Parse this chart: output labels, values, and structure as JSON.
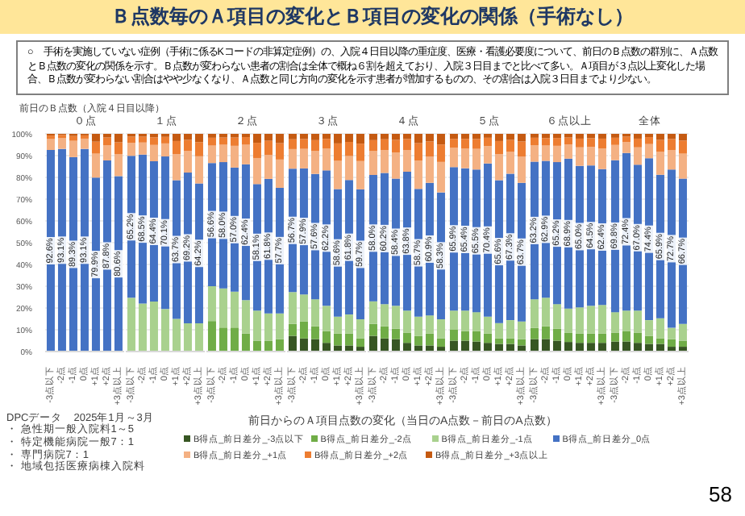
{
  "chart_data": [
    {
      "type": "bar",
      "title": "０点",
      "categories": [
        "-3点以下",
        "-2点",
        "-1点",
        "0点",
        "+1点",
        "+2点",
        "+3点以上"
      ],
      "stacked": true,
      "ylim": [
        0,
        100
      ],
      "yticks": [
        {
          "value": 0,
          "label": "0%"
        },
        {
          "value": 10,
          "label": "10%"
        },
        {
          "value": 20,
          "label": "20%"
        },
        {
          "value": 30,
          "label": "30%"
        },
        {
          "value": 40,
          "label": "40%"
        },
        {
          "value": 50,
          "label": "50%"
        },
        {
          "value": 60,
          "label": "60%"
        },
        {
          "value": 70,
          "label": "70%"
        },
        {
          "value": 80,
          "label": "80%"
        },
        {
          "value": 90,
          "label": "90%"
        },
        {
          "value": 100,
          "label": "100%"
        }
      ],
      "grid": "y",
      "legend": "bottom",
      "annotations": [
        "Ｂ点数毎のＡ項目の変化とＢ項目の変化の関係（手術なし）",
        "○　手術を実施していない症例（手術に係るKコードの非算定症例）の、入院４日目以降の重症度、医療・看護必要度について、前日のＢ点数の群別に、Ａ点数とＢ点数の変化の関係を示す。Ｂ点数が変わらない患者の割合は全体で概ね６割を超えており、入院３日目までと比べて多い。Ａ項目が３点以上変化した場合、Ｂ点数が変わらない割合はやや少なくなり、Ａ点数と同じ方向の変化を示す患者が増加するものの、その割合は入院３日目までより少ない。",
        "前日のＢ点数（入院４日目以降）",
        "DPCデータ　2025年1月～3月",
        "・ 急性期一般入院料1～5",
        "・ 特定機能病院一般7：1",
        "・ 専門病院7：1",
        "・ 地域包括医療病棟入院料",
        "前日からのＡ項目点数の変化（当日のA点数－前日のA点数）",
        "58"
      ],
      "series": [
        {
          "name": "B得点_前日差分_-3点以下",
          "color": "#375623",
          "values": [
            0,
            0,
            0,
            0,
            0,
            0,
            0
          ]
        },
        {
          "name": "B得点_前日差分_-2点",
          "color": "#70ad47",
          "values": [
            0,
            0,
            0,
            0,
            0,
            0,
            0
          ]
        },
        {
          "name": "B得点_前日差分_-1点",
          "color": "#a9d18e",
          "values": [
            0,
            0,
            0,
            0,
            0,
            0,
            0
          ]
        },
        {
          "name": "B得点_前日差分_0点",
          "color": "#4472c4",
          "values": [
            92.6,
            93.1,
            89.3,
            93.1,
            79.9,
            87.8,
            80.6
          ],
          "value_labels": [
            "92.6%",
            "93.1%",
            "89.3%",
            "93.1%",
            "79.9%",
            "87.8%",
            "80.6%"
          ]
        },
        {
          "name": "B得点_前日差分_+1点",
          "color": "#f4b183",
          "values": [
            5,
            4.9,
            7.5,
            4.7,
            11,
            7,
            10
          ]
        },
        {
          "name": "B得点_前日差分_+2点",
          "color": "#ed7d31",
          "values": [
            1.6,
            1.5,
            2.2,
            1.5,
            5.5,
            3.5,
            5.5
          ]
        },
        {
          "name": "B得点_前日差分_+3点以上",
          "color": "#c55a11",
          "values": [
            0.8,
            0.5,
            1,
            0.7,
            3.6,
            1.7,
            3.9
          ]
        }
      ]
    },
    {
      "type": "bar",
      "title": "１点",
      "categories": [
        "-3点以下",
        "-2点",
        "-1点",
        "0点",
        "+1点",
        "+2点",
        "+3点以上"
      ],
      "stacked": true,
      "ylim": [
        0,
        100
      ],
      "yticks": [
        0,
        10,
        20,
        30,
        40,
        50,
        60,
        70,
        80,
        90,
        100
      ],
      "grid": "y",
      "tick_labels": "x",
      "series": [
        {
          "color": "#375623",
          "values": [
            0,
            0,
            0,
            0,
            0,
            0,
            0
          ]
        },
        {
          "color": "#70ad47",
          "values": [
            0,
            0,
            0,
            0,
            0,
            0,
            0
          ]
        },
        {
          "color": "#a9d18e",
          "values": [
            24.7,
            22,
            23,
            19.5,
            15,
            13,
            13
          ]
        },
        {
          "color": "#4472c4",
          "values": [
            65.2,
            68.5,
            64.4,
            70.1,
            63.7,
            69.2,
            64.2
          ],
          "value_labels": [
            "65.2%",
            "68.5%",
            "64.4%",
            "70.1%",
            "63.7%",
            "69.2%",
            "64.2%"
          ]
        },
        {
          "color": "#f4b183",
          "values": [
            6,
            5.5,
            7.5,
            6,
            12,
            10,
            12.5
          ]
        },
        {
          "color": "#ed7d31",
          "values": [
            2.8,
            2.7,
            3.5,
            3,
            6,
            5,
            6.5
          ]
        },
        {
          "color": "#c55a11",
          "values": [
            1.3,
            1.3,
            1.6,
            1.4,
            3.3,
            2.8,
            3.8
          ]
        }
      ]
    },
    {
      "type": "bar",
      "title": "２点",
      "categories": [
        "-3点以下",
        "-2点",
        "-1点",
        "0点",
        "+1点",
        "+2点",
        "+3点以上"
      ],
      "stacked": true,
      "ylim": [
        0,
        100
      ],
      "yticks": [
        0,
        10,
        20,
        30,
        40,
        50,
        60,
        70,
        80,
        90,
        100
      ],
      "grid": "y",
      "tick_labels": "x",
      "series": [
        {
          "color": "#375623",
          "values": [
            0,
            0,
            0,
            0,
            0,
            0,
            0
          ]
        },
        {
          "color": "#70ad47",
          "values": [
            14,
            11,
            11,
            8.3,
            5,
            5,
            5.7
          ]
        },
        {
          "color": "#a9d18e",
          "values": [
            16,
            18,
            16.5,
            15.3,
            13.8,
            12.5,
            11.8
          ]
        },
        {
          "color": "#4472c4",
          "values": [
            56.6,
            58,
            57,
            62.4,
            58.1,
            61.8,
            57.7
          ],
          "value_labels": [
            "56.6%",
            "58.0%",
            "57.0%",
            "62.4%",
            "58.1%",
            "61.8%",
            "57.7%"
          ]
        },
        {
          "color": "#f4b183",
          "values": [
            8,
            8,
            10,
            9,
            12,
            11,
            13
          ]
        },
        {
          "color": "#ed7d31",
          "values": [
            3.6,
            3.3,
            3.8,
            3.5,
            7,
            6.5,
            7.5
          ]
        },
        {
          "color": "#c55a11",
          "values": [
            1.8,
            1.7,
            1.7,
            1.5,
            4.1,
            3.2,
            4.3
          ]
        }
      ]
    },
    {
      "type": "bar",
      "title": "３点",
      "categories": [
        "-3点以下",
        "-2点",
        "-1点",
        "0点",
        "+1点",
        "+2点",
        "+3点以上"
      ],
      "stacked": true,
      "ylim": [
        0,
        100
      ],
      "yticks": [
        0,
        10,
        20,
        30,
        40,
        50,
        60,
        70,
        80,
        90,
        100
      ],
      "grid": "y",
      "tick_labels": "x",
      "series": [
        {
          "color": "#375623",
          "values": [
            7.2,
            6,
            5.7,
            4,
            2.8,
            2.8,
            2.2
          ]
        },
        {
          "color": "#70ad47",
          "values": [
            5.5,
            7.8,
            5.9,
            5.4,
            5.5,
            5.5,
            3.9
          ]
        },
        {
          "color": "#a9d18e",
          "values": [
            14.6,
            12.4,
            12.4,
            11.6,
            7.7,
            8.7,
            8.7
          ]
        },
        {
          "color": "#4472c4",
          "values": [
            56.7,
            57.9,
            57.6,
            62.2,
            58.6,
            61.8,
            59.7
          ],
          "value_labels": [
            "56.7%",
            "57.9%",
            "57.6%",
            "62.2%",
            "58.6%",
            "61.8%",
            "59.7%"
          ]
        },
        {
          "color": "#f4b183",
          "values": [
            9,
            9,
            10.5,
            10,
            13,
            11,
            13
          ]
        },
        {
          "color": "#ed7d31",
          "values": [
            4.5,
            4.5,
            5,
            4.5,
            8,
            6.5,
            8
          ]
        },
        {
          "color": "#c55a11",
          "values": [
            2.5,
            2.4,
            2.9,
            2.3,
            4.4,
            3.7,
            4.5
          ]
        }
      ]
    },
    {
      "type": "bar",
      "title": "４点",
      "categories": [
        "-3点以下",
        "-2点",
        "-1点",
        "0点",
        "+1点",
        "+2点",
        "+3点以上"
      ],
      "stacked": true,
      "ylim": [
        0,
        100
      ],
      "yticks": [
        0,
        10,
        20,
        30,
        40,
        50,
        60,
        70,
        80,
        90,
        100
      ],
      "grid": "y",
      "tick_labels": "x",
      "series": [
        {
          "color": "#375623",
          "values": [
            7.2,
            6,
            5.7,
            4,
            2.8,
            2.8,
            2.2
          ]
        },
        {
          "color": "#70ad47",
          "values": [
            5.5,
            5.6,
            4.8,
            4.7,
            4.4,
            5.5,
            3.9
          ]
        },
        {
          "color": "#a9d18e",
          "values": [
            10.4,
            10.2,
            10.5,
            10.1,
            8.8,
            8.3,
            8.7
          ]
        },
        {
          "color": "#4472c4",
          "values": [
            58,
            60.2,
            58.4,
            63.8,
            58.7,
            60.9,
            58.3
          ],
          "value_labels": [
            "58.0%",
            "60.2%",
            "58.4%",
            "63.8%",
            "58.7%",
            "60.9%",
            "58.3%"
          ]
        },
        {
          "color": "#f4b183",
          "values": [
            11,
            10.5,
            12,
            10,
            13,
            12,
            14
          ]
        },
        {
          "color": "#ed7d31",
          "values": [
            5,
            5,
            5.8,
            5,
            8,
            7,
            8
          ]
        },
        {
          "color": "#c55a11",
          "values": [
            2.9,
            2.5,
            2.8,
            2.4,
            4.3,
            3.5,
            4.9
          ]
        }
      ]
    },
    {
      "type": "bar",
      "title": "５点",
      "categories": [
        "-3点以下",
        "-2点",
        "-1点",
        "0点",
        "+1点",
        "+2点",
        "+3点以上"
      ],
      "stacked": true,
      "ylim": [
        0,
        100
      ],
      "yticks": [
        0,
        10,
        20,
        30,
        40,
        50,
        60,
        70,
        80,
        90,
        100
      ],
      "grid": "y",
      "tick_labels": "x",
      "series": [
        {
          "color": "#375623",
          "values": [
            5,
            5,
            4.6,
            4,
            3.5,
            3.5,
            2.8
          ]
        },
        {
          "color": "#70ad47",
          "values": [
            5,
            4.4,
            4.8,
            4.3,
            2.6,
            2.6,
            2.9
          ]
        },
        {
          "color": "#a9d18e",
          "values": [
            8.8,
            9.4,
            8.7,
            7.7,
            7,
            8.3,
            8.1
          ]
        },
        {
          "color": "#4472c4",
          "values": [
            65.9,
            65.4,
            65.5,
            70.4,
            65.6,
            67.3,
            63.7
          ],
          "value_labels": [
            "65.9%",
            "65.4%",
            "65.5%",
            "70.4%",
            "65.6%",
            "67.3%",
            "63.7%"
          ]
        },
        {
          "color": "#f4b183",
          "values": [
            9,
            9,
            9.5,
            8,
            12,
            10,
            12
          ]
        },
        {
          "color": "#ed7d31",
          "values": [
            4,
            4.5,
            4.5,
            3.8,
            6,
            5.5,
            7
          ]
        },
        {
          "color": "#c55a11",
          "values": [
            2.3,
            2.3,
            2.4,
            1.8,
            3.3,
            2.8,
            3.5
          ]
        }
      ]
    },
    {
      "type": "bar",
      "title": "６点以上",
      "categories": [
        "-3点以下",
        "-2点",
        "-1点",
        "0点",
        "+1点",
        "+2点",
        "+3点以上"
      ],
      "stacked": true,
      "ylim": [
        0,
        100
      ],
      "yticks": [
        0,
        10,
        20,
        30,
        40,
        50,
        60,
        70,
        80,
        90,
        100
      ],
      "grid": "y",
      "tick_labels": "x",
      "series": [
        {
          "color": "#375623",
          "values": [
            5.7,
            5.7,
            5,
            4.4,
            4,
            4,
            4
          ]
        },
        {
          "color": "#70ad47",
          "values": [
            5.2,
            5.9,
            5.5,
            4.3,
            4.3,
            4.3,
            4.3
          ]
        },
        {
          "color": "#a9d18e",
          "values": [
            13.1,
            13.1,
            11.3,
            11,
            12,
            12.7,
            13.1
          ]
        },
        {
          "color": "#4472c4",
          "values": [
            63.2,
            62.9,
            65.2,
            68.9,
            65,
            64.5,
            62.4
          ],
          "value_labels": [
            "63.2%",
            "62.9%",
            "65.2%",
            "68.9%",
            "65.0%",
            "64.5%",
            "62.4%"
          ]
        },
        {
          "color": "#f4b183",
          "values": [
            7.5,
            7,
            7.5,
            6.5,
            8.5,
            8.5,
            9.5
          ]
        },
        {
          "color": "#ed7d31",
          "values": [
            3.5,
            3.5,
            3.6,
            3.2,
            4,
            4,
            4.5
          ]
        },
        {
          "color": "#c55a11",
          "values": [
            1.8,
            1.9,
            1.9,
            1.7,
            2.2,
            2,
            2.2
          ]
        }
      ]
    },
    {
      "type": "bar",
      "title": "全体",
      "categories": [
        "-3点以下",
        "-2点",
        "-1点",
        "0点",
        "+1点",
        "+2点",
        "+3点以上"
      ],
      "stacked": true,
      "ylim": [
        0,
        100
      ],
      "yticks": [
        0,
        10,
        20,
        30,
        40,
        50,
        60,
        70,
        80,
        90,
        100
      ],
      "grid": "y",
      "tick_labels": "x",
      "series": [
        {
          "color": "#375623",
          "values": [
            4.6,
            4.6,
            4,
            3.5,
            3.5,
            2.2,
            2.2
          ]
        },
        {
          "color": "#70ad47",
          "values": [
            4.1,
            4.8,
            4.7,
            3.7,
            2.6,
            3.5,
            2.8
          ]
        },
        {
          "color": "#a9d18e",
          "values": [
            9.4,
            9.4,
            10.1,
            7.2,
            9.2,
            5.2,
            7.7
          ]
        },
        {
          "color": "#4472c4",
          "values": [
            69.8,
            72.4,
            67,
            74.4,
            65.9,
            72.7,
            66.7
          ],
          "value_labels": [
            "69.8%",
            "72.4%",
            "67.0%",
            "74.4%",
            "65.9%",
            "72.7%",
            "66.7%"
          ]
        },
        {
          "color": "#f4b183",
          "values": [
            7,
            5,
            8,
            6.5,
            10.5,
            9,
            11.5
          ]
        },
        {
          "color": "#ed7d31",
          "values": [
            3.3,
            2.5,
            4,
            3.2,
            5.5,
            5,
            6
          ]
        },
        {
          "color": "#c55a11",
          "values": [
            1.8,
            1.3,
            2.2,
            1.5,
            2.8,
            2.4,
            3.1
          ]
        }
      ]
    }
  ]
}
